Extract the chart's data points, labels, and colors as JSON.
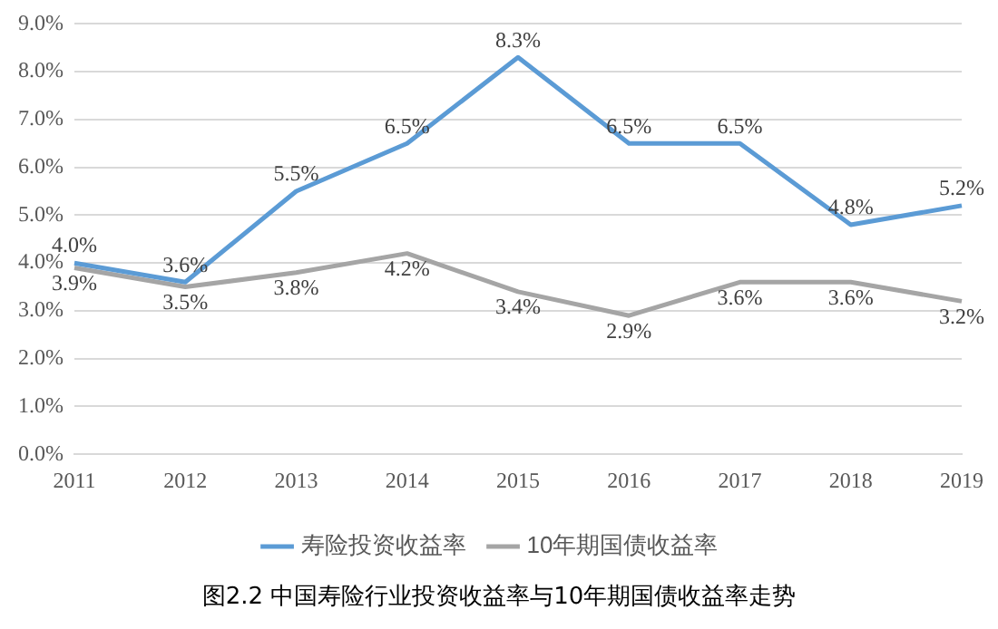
{
  "chart_data": {
    "type": "line",
    "categories": [
      "2011",
      "2012",
      "2013",
      "2014",
      "2015",
      "2016",
      "2017",
      "2018",
      "2019"
    ],
    "series": [
      {
        "name": "寿险投资收益率",
        "color": "#5b9bd5",
        "values": [
          4.0,
          3.6,
          5.5,
          6.5,
          8.3,
          6.5,
          6.5,
          4.8,
          5.2
        ],
        "value_labels": [
          "4.0%",
          "3.6%",
          "5.5%",
          "6.5%",
          "8.3%",
          "6.5%",
          "6.5%",
          "4.8%",
          "5.2%"
        ]
      },
      {
        "name": "10年期国债收益率",
        "color": "#a5a5a5",
        "values": [
          3.9,
          3.5,
          3.8,
          4.2,
          3.4,
          2.9,
          3.6,
          3.6,
          3.2
        ],
        "value_labels": [
          "3.9%",
          "3.5%",
          "3.8%",
          "4.2%",
          "3.4%",
          "2.9%",
          "3.6%",
          "3.6%",
          "3.2%"
        ]
      }
    ],
    "ylim": [
      0,
      9
    ],
    "yticks": [
      {
        "value": 0,
        "label": "0.0%"
      },
      {
        "value": 1,
        "label": "1.0%"
      },
      {
        "value": 2,
        "label": "2.0%"
      },
      {
        "value": 3,
        "label": "3.0%"
      },
      {
        "value": 4,
        "label": "4.0%"
      },
      {
        "value": 5,
        "label": "5.0%"
      },
      {
        "value": 6,
        "label": "6.0%"
      },
      {
        "value": 7,
        "label": "7.0%"
      },
      {
        "value": 8,
        "label": "8.0%"
      },
      {
        "value": 9,
        "label": "9.0%"
      }
    ],
    "grid": "y",
    "legend": "bottom",
    "marker": "none",
    "line_style": "solid",
    "annotations": [
      "图2.2 中国寿险行业投资收益率与10年期国债收益率走势"
    ]
  }
}
